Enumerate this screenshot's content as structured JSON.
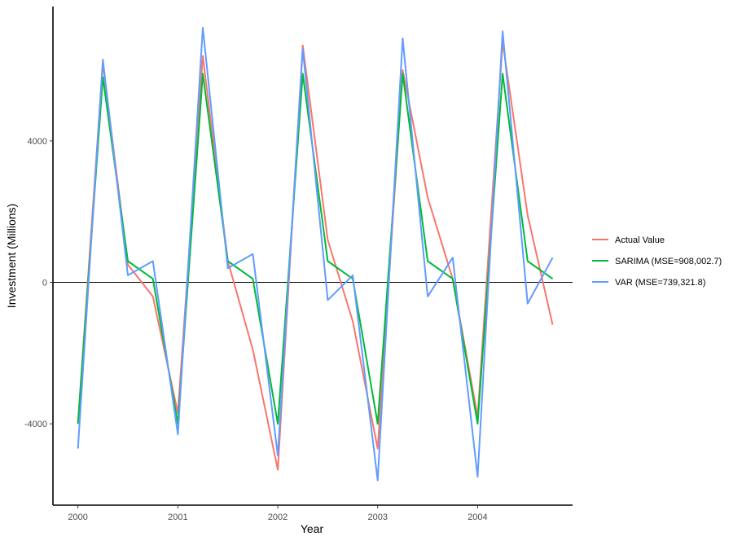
{
  "chart_data": {
    "type": "line",
    "xlabel": "Year",
    "ylabel": "Investment (Millions)",
    "xlim": [
      1999.75,
      2004.95
    ],
    "ylim": [
      -6300,
      7800
    ],
    "xticks": [
      2000,
      2001,
      2002,
      2003,
      2004
    ],
    "xtick_labels": [
      "2000",
      "2001",
      "2002",
      "2003",
      "2004"
    ],
    "yticks": [
      -4000,
      0,
      4000
    ],
    "ytick_labels": [
      "-4000",
      "0",
      "4000"
    ],
    "reference_line_y": 0,
    "grid": false,
    "legend_position": "right",
    "x": [
      2000.0,
      2000.25,
      2000.5,
      2000.75,
      2001.0,
      2001.25,
      2001.5,
      2001.75,
      2002.0,
      2002.25,
      2002.5,
      2002.75,
      2003.0,
      2003.25,
      2003.5,
      2003.75,
      2004.0,
      2004.25,
      2004.5,
      2004.75
    ],
    "series": [
      {
        "name": "Actual Value",
        "color": "#F8766D",
        "values": [
          -4000,
          6200,
          500,
          -400,
          -3700,
          6400,
          600,
          -1900,
          -5300,
          6700,
          1200,
          -1100,
          -4700,
          6000,
          2400,
          100,
          -3800,
          6800,
          1900,
          -1200
        ]
      },
      {
        "name": "SARIMA (MSE=908,002.7)",
        "color": "#00BA38",
        "values": [
          -4000,
          5800,
          600,
          100,
          -4000,
          5900,
          600,
          100,
          -4000,
          5900,
          600,
          100,
          -4000,
          5900,
          600,
          100,
          -4000,
          5900,
          600,
          100
        ]
      },
      {
        "name": "VAR (MSE=739,321.8)",
        "color": "#619CFF",
        "values": [
          -4700,
          6300,
          200,
          600,
          -4300,
          7200,
          400,
          800,
          -4900,
          6600,
          -500,
          200,
          -5600,
          6900,
          -400,
          700,
          -5500,
          7100,
          -600,
          700
        ]
      }
    ]
  }
}
